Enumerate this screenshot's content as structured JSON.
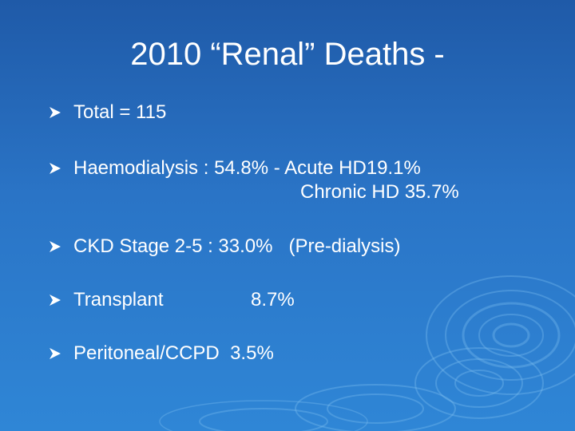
{
  "slide": {
    "title": "2010 “Renal” Deaths -",
    "bullets": [
      {
        "text": "Total = 115"
      },
      {
        "text": "Haemodialysis : 54.8% - Acute HD19.1%",
        "line2": "Chronic HD 35.7%"
      },
      {
        "text": "CKD Stage 2-5 : 33.0%   (Pre-dialysis)"
      },
      {
        "label": "Transplant",
        "value": "8.7%"
      },
      {
        "text": "Peritoneal/CCPD  3.5%"
      }
    ]
  },
  "colors": {
    "background_top": "#1f5aa8",
    "background_bottom": "#2f86d6",
    "text": "#ffffff"
  },
  "icons": {
    "bullet": "arrowhead-bullet-icon",
    "decoration": "water-ripple-decoration"
  }
}
